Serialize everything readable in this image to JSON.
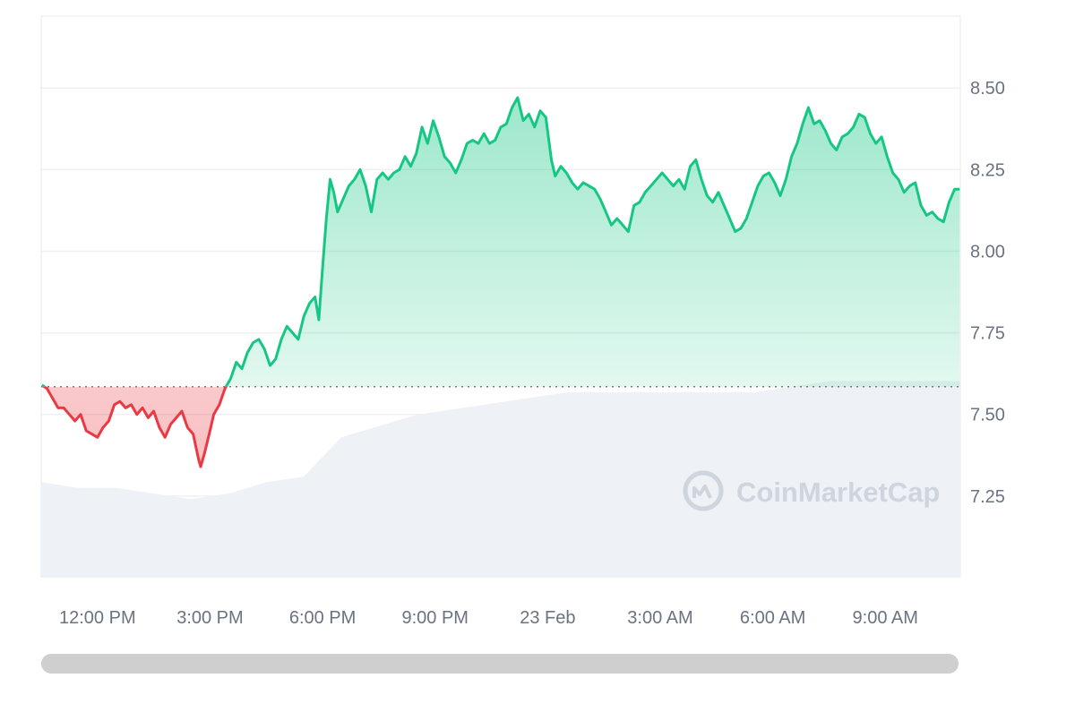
{
  "watermark": {
    "text": "CoinMarketCap"
  },
  "colors": {
    "up": "#16c784",
    "down": "#ea3943",
    "volume": "#eef1f5",
    "grid": "#eef0f3",
    "baseline": "#7b7b7b"
  },
  "chart_data": {
    "type": "area",
    "title": "",
    "xlabel": "",
    "ylabel": "",
    "baseline": 7.585,
    "ylim": [
      7.0,
      8.72
    ],
    "y_ticks": [
      7.25,
      7.5,
      7.75,
      8.0,
      8.25,
      8.5
    ],
    "y_tick_labels": [
      "7.25",
      "7.50",
      "7.75",
      "8.00",
      "8.25",
      "8.50"
    ],
    "x_range_hours": [
      10.5,
      35.0
    ],
    "x_unit": "hours since 00:00 on 22 Feb",
    "x_ticks": [
      {
        "x": 12,
        "label": "12:00 PM"
      },
      {
        "x": 15,
        "label": "3:00 PM"
      },
      {
        "x": 18,
        "label": "6:00 PM"
      },
      {
        "x": 21,
        "label": "9:00 PM"
      },
      {
        "x": 24,
        "label": "23 Feb"
      },
      {
        "x": 27,
        "label": "3:00 AM"
      },
      {
        "x": 30,
        "label": "6:00 AM"
      },
      {
        "x": 33,
        "label": "9:00 AM"
      }
    ],
    "grid": true,
    "legend": "none",
    "series": [
      {
        "values": [
          [
            10.52,
            7.59
          ],
          [
            10.65,
            7.58
          ],
          [
            10.8,
            7.55
          ],
          [
            10.95,
            7.52
          ],
          [
            11.1,
            7.52
          ],
          [
            11.25,
            7.5
          ],
          [
            11.4,
            7.48
          ],
          [
            11.55,
            7.5
          ],
          [
            11.7,
            7.45
          ],
          [
            11.85,
            7.44
          ],
          [
            12.0,
            7.43
          ],
          [
            12.15,
            7.46
          ],
          [
            12.3,
            7.48
          ],
          [
            12.45,
            7.53
          ],
          [
            12.6,
            7.54
          ],
          [
            12.75,
            7.52
          ],
          [
            12.9,
            7.53
          ],
          [
            13.05,
            7.5
          ],
          [
            13.2,
            7.52
          ],
          [
            13.35,
            7.49
          ],
          [
            13.5,
            7.51
          ],
          [
            13.65,
            7.46
          ],
          [
            13.8,
            7.43
          ],
          [
            13.95,
            7.47
          ],
          [
            14.1,
            7.49
          ],
          [
            14.25,
            7.51
          ],
          [
            14.4,
            7.46
          ],
          [
            14.55,
            7.44
          ],
          [
            14.7,
            7.36
          ],
          [
            14.75,
            7.34
          ],
          [
            14.85,
            7.38
          ],
          [
            15.0,
            7.45
          ],
          [
            15.1,
            7.5
          ],
          [
            15.25,
            7.53
          ],
          [
            15.4,
            7.58
          ],
          [
            15.55,
            7.61
          ],
          [
            15.7,
            7.66
          ],
          [
            15.85,
            7.64
          ],
          [
            16.0,
            7.69
          ],
          [
            16.15,
            7.72
          ],
          [
            16.3,
            7.73
          ],
          [
            16.45,
            7.7
          ],
          [
            16.6,
            7.65
          ],
          [
            16.75,
            7.67
          ],
          [
            16.9,
            7.73
          ],
          [
            17.05,
            7.77
          ],
          [
            17.2,
            7.75
          ],
          [
            17.35,
            7.73
          ],
          [
            17.5,
            7.8
          ],
          [
            17.65,
            7.84
          ],
          [
            17.8,
            7.86
          ],
          [
            17.9,
            7.79
          ],
          [
            18.0,
            7.95
          ],
          [
            18.1,
            8.1
          ],
          [
            18.2,
            8.22
          ],
          [
            18.3,
            8.18
          ],
          [
            18.4,
            8.12
          ],
          [
            18.55,
            8.16
          ],
          [
            18.7,
            8.2
          ],
          [
            18.85,
            8.22
          ],
          [
            19.0,
            8.25
          ],
          [
            19.15,
            8.2
          ],
          [
            19.3,
            8.12
          ],
          [
            19.45,
            8.22
          ],
          [
            19.6,
            8.24
          ],
          [
            19.75,
            8.22
          ],
          [
            19.9,
            8.24
          ],
          [
            20.05,
            8.25
          ],
          [
            20.2,
            8.29
          ],
          [
            20.35,
            8.26
          ],
          [
            20.5,
            8.3
          ],
          [
            20.65,
            8.38
          ],
          [
            20.8,
            8.33
          ],
          [
            20.95,
            8.4
          ],
          [
            21.1,
            8.35
          ],
          [
            21.25,
            8.29
          ],
          [
            21.4,
            8.27
          ],
          [
            21.55,
            8.24
          ],
          [
            21.7,
            8.28
          ],
          [
            21.85,
            8.33
          ],
          [
            22.0,
            8.34
          ],
          [
            22.15,
            8.33
          ],
          [
            22.3,
            8.36
          ],
          [
            22.45,
            8.33
          ],
          [
            22.6,
            8.34
          ],
          [
            22.75,
            8.38
          ],
          [
            22.9,
            8.39
          ],
          [
            23.05,
            8.44
          ],
          [
            23.2,
            8.47
          ],
          [
            23.35,
            8.4
          ],
          [
            23.5,
            8.42
          ],
          [
            23.65,
            8.38
          ],
          [
            23.8,
            8.43
          ],
          [
            23.95,
            8.41
          ],
          [
            24.1,
            8.28
          ],
          [
            24.2,
            8.23
          ],
          [
            24.35,
            8.26
          ],
          [
            24.5,
            8.24
          ],
          [
            24.65,
            8.21
          ],
          [
            24.8,
            8.19
          ],
          [
            24.95,
            8.21
          ],
          [
            25.1,
            8.2
          ],
          [
            25.25,
            8.19
          ],
          [
            25.4,
            8.16
          ],
          [
            25.55,
            8.12
          ],
          [
            25.7,
            8.08
          ],
          [
            25.85,
            8.1
          ],
          [
            26.0,
            8.08
          ],
          [
            26.15,
            8.06
          ],
          [
            26.3,
            8.14
          ],
          [
            26.45,
            8.15
          ],
          [
            26.6,
            8.18
          ],
          [
            26.75,
            8.2
          ],
          [
            26.9,
            8.22
          ],
          [
            27.05,
            8.24
          ],
          [
            27.2,
            8.22
          ],
          [
            27.35,
            8.2
          ],
          [
            27.5,
            8.22
          ],
          [
            27.65,
            8.19
          ],
          [
            27.8,
            8.26
          ],
          [
            27.95,
            8.28
          ],
          [
            28.1,
            8.22
          ],
          [
            28.25,
            8.17
          ],
          [
            28.4,
            8.15
          ],
          [
            28.55,
            8.18
          ],
          [
            28.7,
            8.14
          ],
          [
            28.85,
            8.1
          ],
          [
            29.0,
            8.06
          ],
          [
            29.15,
            8.07
          ],
          [
            29.3,
            8.1
          ],
          [
            29.45,
            8.15
          ],
          [
            29.6,
            8.2
          ],
          [
            29.75,
            8.23
          ],
          [
            29.9,
            8.24
          ],
          [
            30.05,
            8.21
          ],
          [
            30.2,
            8.17
          ],
          [
            30.35,
            8.22
          ],
          [
            30.5,
            8.29
          ],
          [
            30.65,
            8.33
          ],
          [
            30.8,
            8.39
          ],
          [
            30.95,
            8.44
          ],
          [
            31.1,
            8.39
          ],
          [
            31.25,
            8.4
          ],
          [
            31.4,
            8.37
          ],
          [
            31.55,
            8.33
          ],
          [
            31.7,
            8.31
          ],
          [
            31.85,
            8.35
          ],
          [
            32.0,
            8.36
          ],
          [
            32.15,
            8.38
          ],
          [
            32.3,
            8.42
          ],
          [
            32.45,
            8.41
          ],
          [
            32.6,
            8.36
          ],
          [
            32.75,
            8.33
          ],
          [
            32.9,
            8.35
          ],
          [
            33.05,
            8.29
          ],
          [
            33.2,
            8.24
          ],
          [
            33.35,
            8.22
          ],
          [
            33.5,
            8.18
          ],
          [
            33.65,
            8.2
          ],
          [
            33.8,
            8.21
          ],
          [
            33.95,
            8.14
          ],
          [
            34.1,
            8.11
          ],
          [
            34.25,
            8.12
          ],
          [
            34.4,
            8.1
          ],
          [
            34.55,
            8.09
          ],
          [
            34.7,
            8.15
          ],
          [
            34.85,
            8.19
          ],
          [
            34.98,
            8.19
          ]
        ]
      }
    ],
    "volume": [
      [
        10.5,
        0.17
      ],
      [
        11.5,
        0.16
      ],
      [
        12.5,
        0.16
      ],
      [
        13.5,
        0.15
      ],
      [
        14.5,
        0.14
      ],
      [
        15.5,
        0.15
      ],
      [
        16.5,
        0.17
      ],
      [
        17.5,
        0.18
      ],
      [
        18.5,
        0.25
      ],
      [
        19.5,
        0.27
      ],
      [
        20.5,
        0.29
      ],
      [
        21.5,
        0.3
      ],
      [
        22.5,
        0.31
      ],
      [
        23.5,
        0.32
      ],
      [
        24.5,
        0.33
      ],
      [
        25.5,
        0.33
      ],
      [
        26.5,
        0.33
      ],
      [
        27.5,
        0.33
      ],
      [
        28.5,
        0.33
      ],
      [
        29.5,
        0.33
      ],
      [
        30.5,
        0.34
      ],
      [
        31.5,
        0.35
      ],
      [
        32.5,
        0.35
      ],
      [
        33.5,
        0.35
      ],
      [
        34.5,
        0.35
      ],
      [
        35.0,
        0.35
      ]
    ]
  }
}
